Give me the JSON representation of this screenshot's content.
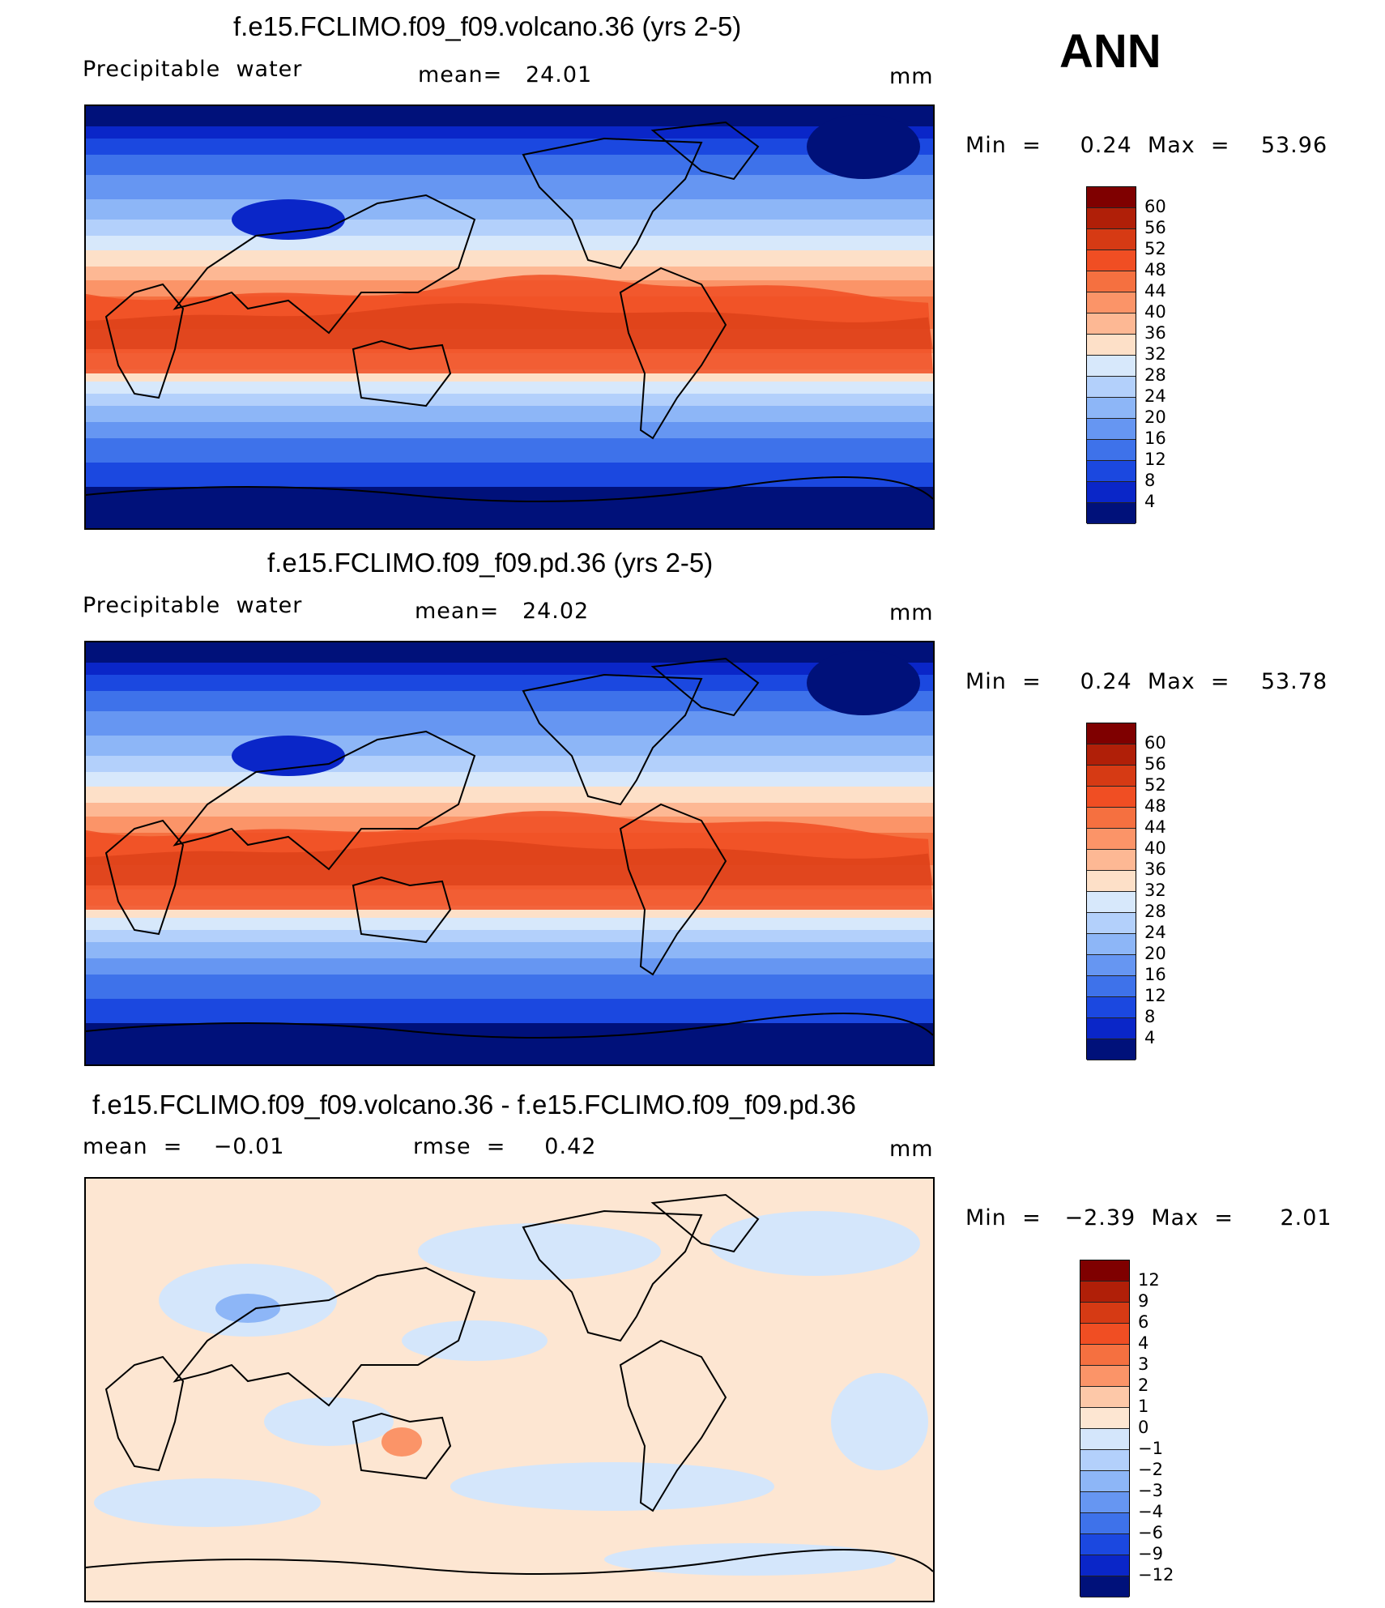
{
  "season": "ANN",
  "panels": [
    {
      "title": "f.e15.FCLIMO.f09_f09.volcano.36 (yrs 2-5)",
      "left_label": "Precipitable  water",
      "mid_label": "mean=   24.01",
      "units": "mm",
      "minmax": "Min  =     0.24  Max  =    53.96"
    },
    {
      "title": "f.e15.FCLIMO.f09_f09.pd.36 (yrs 2-5)",
      "left_label": "Precipitable  water",
      "mid_label": "mean=   24.02",
      "units": "mm",
      "minmax": "Min  =     0.24  Max  =    53.78"
    },
    {
      "title": "f.e15.FCLIMO.f09_f09.volcano.36 - f.e15.FCLIMO.f09_f09.pd.36",
      "left_label": "mean  =    −0.01",
      "mid_label": "rmse  =     0.42",
      "units": "mm",
      "minmax": "Min  =   −2.39  Max  =      2.01"
    }
  ],
  "chart_data": [
    {
      "type": "heatmap",
      "title": "f.e15.FCLIMO.f09_f09.volcano.36 (yrs 2-5)",
      "variable": "Precipitable  water",
      "units": "mm",
      "mean": 24.01,
      "min": 0.24,
      "max": 53.96,
      "colorbar_levels": [
        "60",
        "56",
        "52",
        "48",
        "44",
        "40",
        "36",
        "32",
        "28",
        "24",
        "20",
        "16",
        "12",
        "8",
        "4"
      ],
      "colors": [
        "#7f0000",
        "#b01f08",
        "#d63a14",
        "#f04e23",
        "#f57040",
        "#fb9468",
        "#fdb894",
        "#fde0c8",
        "#d7e8fb",
        "#b3d0fb",
        "#8db6f7",
        "#6696f2",
        "#3e72ea",
        "#1b48e0",
        "#0a26c8",
        "#00117a"
      ]
    },
    {
      "type": "heatmap",
      "title": "f.e15.FCLIMO.f09_f09.pd.36 (yrs 2-5)",
      "variable": "Precipitable  water",
      "units": "mm",
      "mean": 24.02,
      "min": 0.24,
      "max": 53.78,
      "colorbar_levels": [
        "60",
        "56",
        "52",
        "48",
        "44",
        "40",
        "36",
        "32",
        "28",
        "24",
        "20",
        "16",
        "12",
        "8",
        "4"
      ],
      "colors": [
        "#7f0000",
        "#b01f08",
        "#d63a14",
        "#f04e23",
        "#f57040",
        "#fb9468",
        "#fdb894",
        "#fde0c8",
        "#d7e8fb",
        "#b3d0fb",
        "#8db6f7",
        "#6696f2",
        "#3e72ea",
        "#1b48e0",
        "#0a26c8",
        "#00117a"
      ]
    },
    {
      "type": "heatmap",
      "title": "f.e15.FCLIMO.f09_f09.volcano.36 - f.e15.FCLIMO.f09_f09.pd.36",
      "units": "mm",
      "mean": -0.01,
      "rmse": 0.42,
      "min": -2.39,
      "max": 2.01,
      "colorbar_levels": [
        "12",
        "9",
        "6",
        "4",
        "3",
        "2",
        "1",
        "0",
        "−1",
        "−2",
        "−3",
        "−4",
        "−6",
        "−9",
        "−12"
      ],
      "colors": [
        "#7f0000",
        "#b01f08",
        "#d63a14",
        "#f04e23",
        "#f57040",
        "#fb9468",
        "#fdc8a8",
        "#fde6d2",
        "#d4e6fb",
        "#b3d0fb",
        "#8db6f7",
        "#6696f2",
        "#3e72ea",
        "#1b48e0",
        "#0a26c8",
        "#00117a"
      ]
    }
  ]
}
